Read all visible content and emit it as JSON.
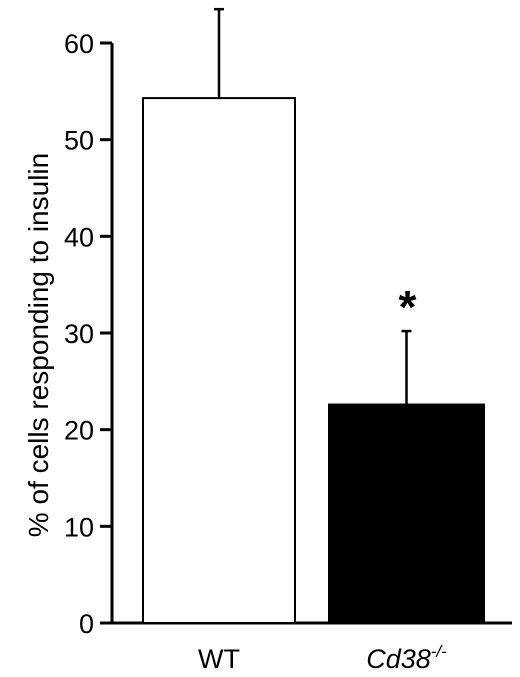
{
  "chart_data": {
    "type": "bar",
    "categories": [
      "WT",
      "Cd38"
    ],
    "category_superscripts": [
      "",
      "-/-"
    ],
    "category_italic": [
      false,
      true
    ],
    "values": [
      54.3,
      22.6
    ],
    "errors": [
      9.2,
      7.6
    ],
    "bar_fills": [
      "#ffffff",
      "#000000"
    ],
    "annotations": [
      "",
      "*"
    ],
    "ylabel": "% of cells responding to insulin",
    "xlabel": "",
    "ylim": [
      0,
      60
    ],
    "yticks": [
      0,
      10,
      20,
      30,
      40,
      50,
      60
    ],
    "grid": false,
    "legend": "none"
  }
}
